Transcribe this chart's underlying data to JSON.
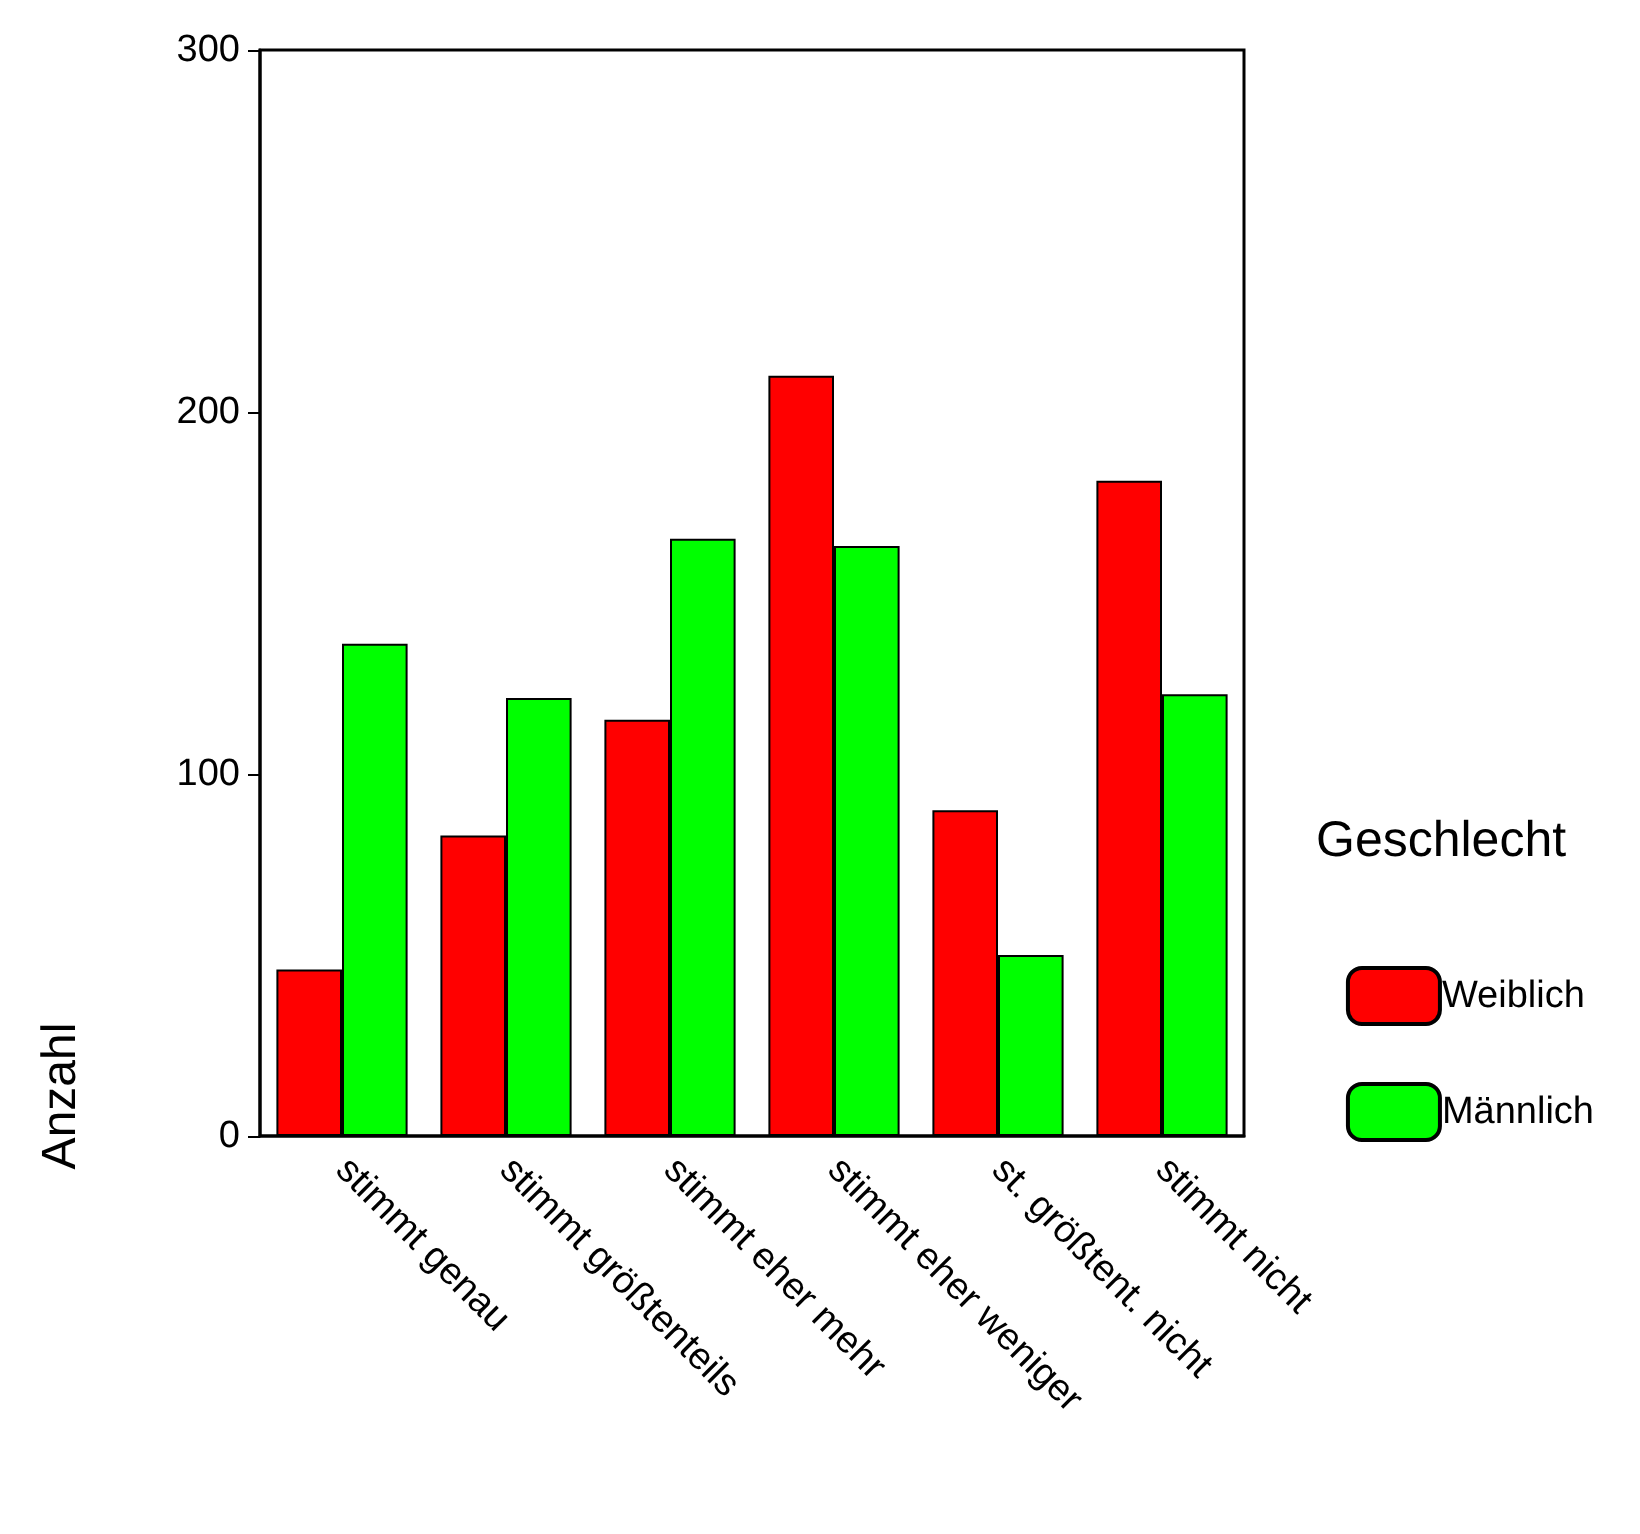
{
  "chart_data": {
    "type": "bar",
    "ylabel": "Anzahl",
    "legend_title": "Geschlecht",
    "categories": [
      "stimmt genau",
      "stimmt größtenteils",
      "stimmt eher mehr",
      "stimmt eher weniger",
      "st. größtent. nicht",
      "stimmt nicht"
    ],
    "series": [
      {
        "name": "Weiblich",
        "color": "#ff0000",
        "values": [
          46,
          83,
          115,
          210,
          90,
          181
        ]
      },
      {
        "name": "Männlich",
        "color": "#00ff00",
        "values": [
          136,
          121,
          165,
          163,
          50,
          122
        ]
      }
    ],
    "ylim": [
      0,
      300
    ],
    "yticks": [
      0,
      100,
      200,
      300
    ],
    "grid": false,
    "legend": "right"
  }
}
